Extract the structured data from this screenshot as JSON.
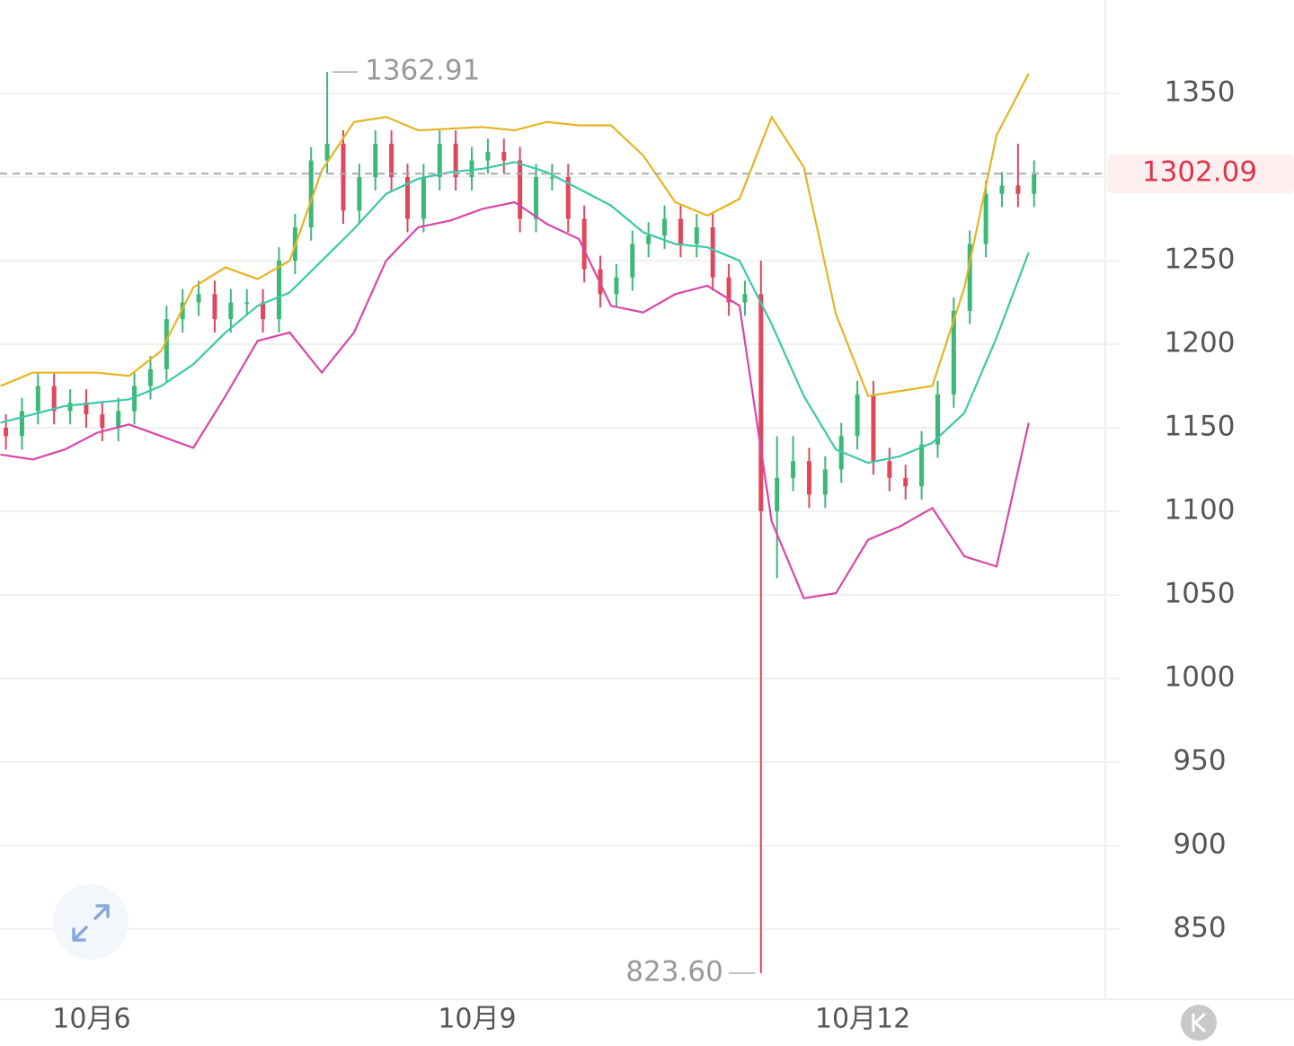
{
  "chart_data": {
    "type": "candlestick",
    "xlim": [
      -17.1,
      189.3
    ],
    "xticks": [
      {
        "value": 0,
        "label": "10月6"
      },
      {
        "value": 72,
        "label": "10月9"
      },
      {
        "value": 144,
        "label": "10月12"
      }
    ],
    "ylim": [
      808,
      1406
    ],
    "yticks": [
      850,
      900,
      950,
      1000,
      1050,
      1100,
      1150,
      1200,
      1250,
      1300,
      1350
    ],
    "grid": true,
    "up_color": "#3cb878",
    "down_color": "#e0475a",
    "candles": {
      "x": [
        -16,
        -13,
        -10,
        -7,
        -4,
        -1,
        2,
        5,
        8,
        11,
        14,
        17,
        20,
        23,
        26,
        29,
        32,
        35,
        38,
        41,
        44,
        47,
        50,
        53,
        56,
        59,
        62,
        65,
        68,
        71,
        74,
        77,
        80,
        83,
        86,
        89,
        92,
        95,
        98,
        101,
        104,
        107,
        110,
        113,
        116,
        119,
        122,
        125,
        128,
        131,
        134,
        137,
        140,
        143,
        146,
        149,
        152,
        155,
        158,
        161,
        164,
        167,
        170,
        173,
        176
      ],
      "open": [
        1150,
        1145,
        1160,
        1175,
        1160,
        1165,
        1158,
        1150,
        1160,
        1175,
        1185,
        1215,
        1225,
        1230,
        1215,
        1225,
        1225,
        1215,
        1250,
        1270,
        1310,
        1320,
        1280,
        1300,
        1320,
        1300,
        1275,
        1300,
        1320,
        1300,
        1310,
        1315,
        1310,
        1275,
        1300,
        1300,
        1275,
        1245,
        1230,
        1240,
        1260,
        1265,
        1275,
        1260,
        1270,
        1240,
        1225,
        1230,
        1100,
        1120,
        1130,
        1110,
        1125,
        1145,
        1170,
        1130,
        1120,
        1115,
        1140,
        1170,
        1220,
        1260,
        1290,
        1295,
        1290
      ],
      "high": [
        1158,
        1168,
        1183,
        1183,
        1173,
        1173,
        1166,
        1168,
        1183,
        1193,
        1223,
        1233,
        1238,
        1238,
        1233,
        1233,
        1233,
        1258,
        1278,
        1318,
        1362.91,
        1328,
        1308,
        1328,
        1328,
        1308,
        1308,
        1328,
        1328,
        1318,
        1323,
        1323,
        1318,
        1308,
        1308,
        1308,
        1283,
        1253,
        1248,
        1268,
        1273,
        1283,
        1283,
        1278,
        1278,
        1248,
        1238,
        1250,
        1145,
        1145,
        1138,
        1133,
        1153,
        1178,
        1178,
        1138,
        1128,
        1148,
        1178,
        1228,
        1268,
        1298,
        1303,
        1320,
        1310
      ],
      "low": [
        1137,
        1137,
        1152,
        1152,
        1152,
        1150,
        1142,
        1142,
        1152,
        1167,
        1177,
        1207,
        1217,
        1207,
        1207,
        1217,
        1207,
        1207,
        1242,
        1262,
        1302,
        1272,
        1272,
        1292,
        1292,
        1267,
        1267,
        1292,
        1292,
        1292,
        1302,
        1302,
        1267,
        1267,
        1292,
        1267,
        1237,
        1222,
        1222,
        1232,
        1252,
        1257,
        1252,
        1252,
        1232,
        1217,
        1217,
        823.6,
        1060,
        1112,
        1102,
        1102,
        1117,
        1137,
        1122,
        1112,
        1107,
        1107,
        1132,
        1162,
        1212,
        1252,
        1282,
        1282,
        1282
      ],
      "close": [
        1145,
        1160,
        1175,
        1160,
        1165,
        1158,
        1150,
        1160,
        1175,
        1185,
        1215,
        1225,
        1230,
        1215,
        1225,
        1225,
        1215,
        1250,
        1270,
        1310,
        1320,
        1280,
        1300,
        1320,
        1300,
        1275,
        1300,
        1320,
        1300,
        1310,
        1315,
        1310,
        1275,
        1300,
        1300,
        1275,
        1245,
        1230,
        1240,
        1260,
        1265,
        1275,
        1260,
        1270,
        1240,
        1225,
        1230,
        1100,
        1120,
        1130,
        1110,
        1125,
        1145,
        1170,
        1130,
        1120,
        1115,
        1140,
        1170,
        1220,
        1260,
        1290,
        1295,
        1290,
        1302.09
      ]
    },
    "bands": {
      "x": [
        -17,
        -11,
        -5,
        1,
        7,
        13,
        19,
        25,
        31,
        37,
        43,
        49,
        55,
        61,
        67,
        73,
        79,
        85,
        91,
        97,
        103,
        109,
        115,
        121,
        127,
        133,
        139,
        145,
        151,
        157,
        163,
        169,
        175
      ],
      "series": [
        {
          "color": "#e6b422",
          "values": [
            1175,
            1183,
            1183,
            1183,
            1181,
            1196,
            1234,
            1246,
            1239,
            1250,
            1304,
            1333,
            1336,
            1328,
            1329,
            1330,
            1328,
            1333,
            1331,
            1331,
            1313,
            1285,
            1277,
            1287,
            1336,
            1306,
            1218,
            1169,
            1172,
            1175,
            1234,
            1325,
            1362
          ]
        },
        {
          "color": "#3cc8a8",
          "values": [
            1153,
            1158,
            1163,
            1165,
            1167,
            1175,
            1188,
            1207,
            1223,
            1231,
            1250,
            1269,
            1290,
            1299,
            1303,
            1305,
            1309,
            1303,
            1293,
            1283,
            1267,
            1260,
            1258,
            1250,
            1212,
            1169,
            1137,
            1129,
            1133,
            1141,
            1159,
            1204,
            1255
          ]
        },
        {
          "color": "#d946a8",
          "values": [
            1134,
            1131,
            1137,
            1147,
            1152,
            1145,
            1138,
            1169,
            1202,
            1207,
            1183,
            1207,
            1250,
            1270,
            1274,
            1281,
            1285,
            1272,
            1263,
            1223,
            1219,
            1230,
            1235,
            1223,
            1094,
            1048,
            1051,
            1083,
            1091,
            1102,
            1073,
            1067,
            1153
          ]
        }
      ]
    },
    "high_mark": 1362.91,
    "low_mark": {
      "value": 823.6,
      "label": "823.60"
    },
    "last_price": 1302.09,
    "last_color": "#d9364b"
  }
}
